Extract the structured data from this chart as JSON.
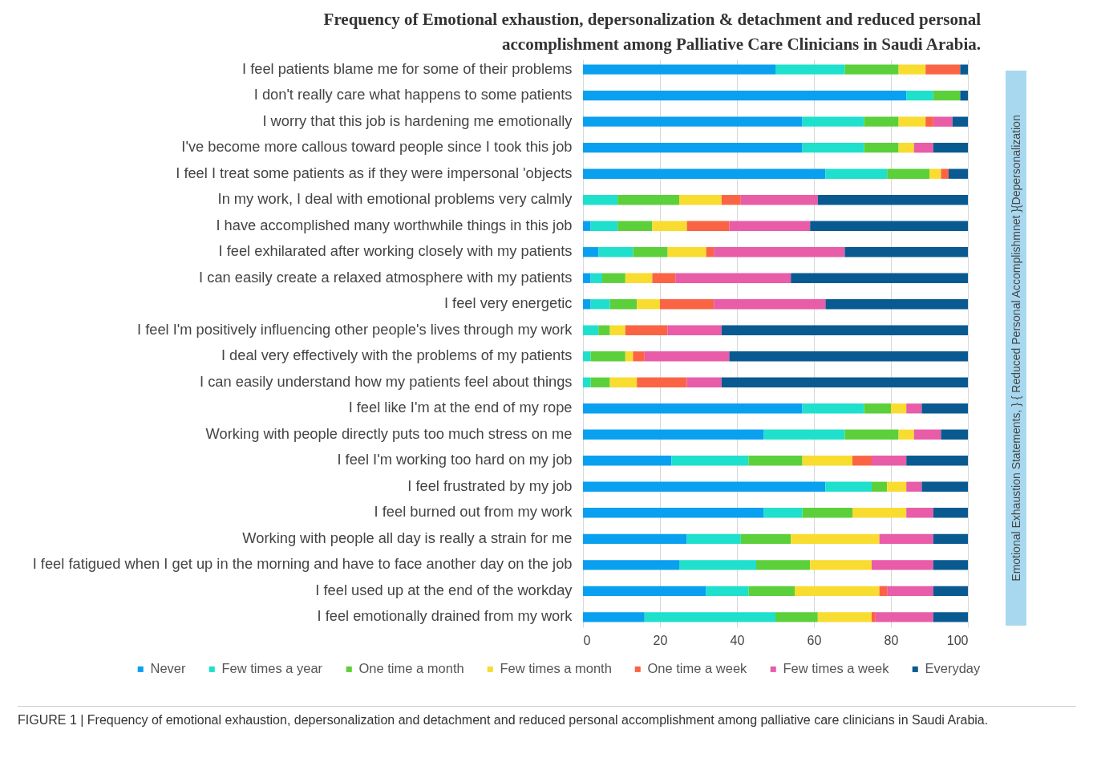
{
  "chart_data": {
    "type": "bar",
    "orientation": "horizontal",
    "stacked": true,
    "title": "Frequency of Emotional exhaustion, depersonalization & detachment and reduced personal accomplishment among Palliative Care Clinicians in Saudi Arabia.",
    "categories": [
      "I feel patients blame me for some of their problems",
      "I don't really care what happens to some patients",
      "I worry that this job is hardening me emotionally",
      "I've become more callous toward people since I took this job",
      "I feel I treat some patients as if they were impersonal 'objects",
      "In my work, I deal with emotional problems very calmly",
      "I have accomplished many worthwhile things in this job",
      "I feel exhilarated after working closely with my patients",
      "I can easily create a relaxed atmosphere with my patients",
      "I feel very energetic",
      "I feel I'm positively influencing other people's lives through my work",
      "I deal very effectively with the problems of my patients",
      "I can easily understand how my patients feel about things",
      "I feel like I'm at the end of my rope",
      "Working with people directly puts too much stress on me",
      "I feel I'm working too hard on my job",
      "I feel frustrated by my job",
      "I feel burned out from my work",
      "Working with people all day is really a strain for me",
      "I feel fatigued when I get up in the morning and have to face another day on the job",
      "I feel used up at the end of the workday",
      "I feel emotionally drained from my work"
    ],
    "series": [
      {
        "name": "Never",
        "color": "#0aa0f0",
        "values": [
          50,
          84,
          57,
          57,
          63,
          0,
          2,
          4,
          2,
          2,
          0,
          0,
          0,
          57,
          47,
          23,
          63,
          47,
          27,
          25,
          32,
          16
        ]
      },
      {
        "name": "Few times a year",
        "color": "#1ee0cc",
        "values": [
          18,
          7,
          16,
          16,
          16,
          9,
          7,
          9,
          3,
          5,
          4,
          2,
          2,
          16,
          21,
          20,
          12,
          10,
          14,
          20,
          11,
          34
        ]
      },
      {
        "name": "One time a month",
        "color": "#5cd03a",
        "values": [
          14,
          7,
          9,
          9,
          11,
          16,
          9,
          9,
          6,
          7,
          3,
          9,
          5,
          7,
          14,
          14,
          4,
          13,
          13,
          14,
          12,
          11
        ]
      },
      {
        "name": "Few times a month",
        "color": "#f8dc30",
        "values": [
          7,
          0,
          7,
          4,
          3,
          11,
          9,
          10,
          7,
          6,
          4,
          2,
          7,
          4,
          4,
          13,
          5,
          14,
          23,
          16,
          22,
          14
        ]
      },
      {
        "name": "One time a week",
        "color": "#fa6444",
        "values": [
          9,
          0,
          2,
          0,
          2,
          5,
          11,
          2,
          6,
          14,
          11,
          3,
          13,
          0,
          0,
          5,
          0,
          0,
          0,
          0,
          2,
          1
        ]
      },
      {
        "name": "Few times a week",
        "color": "#e85ca8",
        "values": [
          0,
          0,
          5,
          5,
          0,
          20,
          21,
          34,
          30,
          29,
          14,
          22,
          9,
          4,
          7,
          9,
          4,
          7,
          14,
          16,
          12,
          15
        ]
      },
      {
        "name": "Everyday",
        "color": "#0a5a92",
        "values": [
          2,
          2,
          4,
          9,
          5,
          39,
          41,
          32,
          46,
          37,
          64,
          62,
          64,
          12,
          7,
          16,
          12,
          9,
          9,
          9,
          9,
          9
        ]
      }
    ],
    "xlim": [
      0,
      100
    ],
    "xticks": [
      0,
      20,
      40,
      60,
      80,
      100
    ],
    "grid": "x",
    "legend": "bottom",
    "annotations": [
      "Emotional  Exhaustion Statements, } { Reduced Personal Accomplishmnet }{Depersonalization",
      "FIGURE 1 | Frequency of emotional exhaustion, depersonalization and detachment and reduced personal accomplishment among palliative care clinicians in Saudi Arabia."
    ]
  }
}
